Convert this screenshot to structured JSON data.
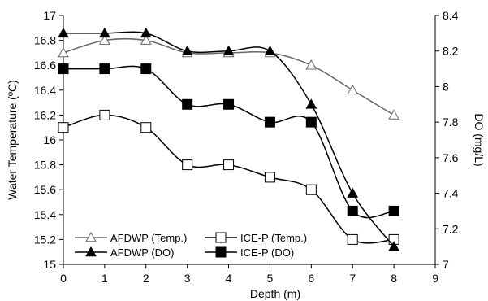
{
  "chart_data": {
    "type": "line",
    "x": [
      0,
      1,
      2,
      3,
      4,
      5,
      6,
      7,
      8
    ],
    "xlabel": "Depth (m)",
    "xlim": [
      0,
      9
    ],
    "x_ticks": [
      "0",
      "1",
      "2",
      "3",
      "4",
      "5",
      "6",
      "7",
      "8",
      "9"
    ],
    "ylabel_left": "Water Temperature (ºC)",
    "ylim_left": [
      15,
      17
    ],
    "y_left_ticks": [
      "15",
      "15.2",
      "15.4",
      "15.6",
      "15.8",
      "16",
      "16.2",
      "16.4",
      "16.6",
      "16.8",
      "17"
    ],
    "ylabel_right": "DO (mg/L)",
    "ylim_right": [
      7,
      8.4
    ],
    "y_right_ticks": [
      "7",
      "7.2",
      "7.4",
      "7.6",
      "7.8",
      "8",
      "8.2",
      "8.4"
    ],
    "grid": false,
    "legend_position": "bottom-left",
    "series": [
      {
        "name": "AFDWP (Temp.)",
        "axis": "left",
        "marker": "open-triangle",
        "values": [
          16.7,
          16.8,
          16.8,
          16.7,
          16.7,
          16.7,
          16.6,
          16.4,
          16.2
        ]
      },
      {
        "name": "ICE-P (Temp.)",
        "axis": "left",
        "marker": "open-square",
        "values": [
          16.1,
          16.2,
          16.1,
          15.8,
          15.8,
          15.7,
          15.6,
          15.2,
          15.2
        ]
      },
      {
        "name": "AFDWP (DO)",
        "axis": "right",
        "marker": "filled-triangle",
        "values": [
          8.3,
          8.3,
          8.3,
          8.2,
          8.2,
          8.2,
          7.9,
          7.4,
          7.1
        ]
      },
      {
        "name": "ICE-P (DO)",
        "axis": "right",
        "marker": "filled-square",
        "values": [
          8.1,
          8.1,
          8.1,
          7.9,
          7.9,
          7.8,
          7.8,
          7.3,
          7.3
        ]
      }
    ],
    "colors": {
      "axis": "#000000",
      "line": "#000000",
      "marker_fill_open": "#ffffff",
      "marker_fill_filled": "#000000"
    }
  }
}
